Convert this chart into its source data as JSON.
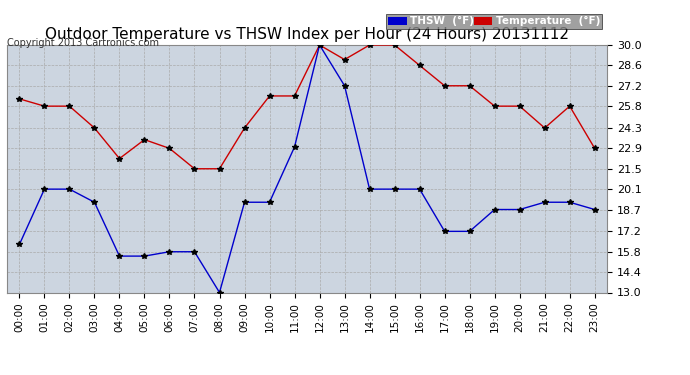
{
  "title": "Outdoor Temperature vs THSW Index per Hour (24 Hours) 20131112",
  "copyright": "Copyright 2013 Cartronics.com",
  "hours": [
    "00:00",
    "01:00",
    "02:00",
    "03:00",
    "04:00",
    "05:00",
    "06:00",
    "07:00",
    "08:00",
    "09:00",
    "10:00",
    "11:00",
    "12:00",
    "13:00",
    "14:00",
    "15:00",
    "16:00",
    "17:00",
    "18:00",
    "19:00",
    "20:00",
    "21:00",
    "22:00",
    "23:00"
  ],
  "temperature": [
    26.3,
    25.8,
    25.8,
    24.3,
    22.2,
    23.5,
    22.9,
    21.5,
    21.5,
    24.3,
    26.5,
    26.5,
    30.0,
    29.0,
    30.0,
    30.0,
    28.6,
    27.2,
    27.2,
    25.8,
    25.8,
    24.3,
    25.8,
    22.9
  ],
  "thsw": [
    16.3,
    20.1,
    20.1,
    19.2,
    15.5,
    15.5,
    15.8,
    15.8,
    13.0,
    19.2,
    19.2,
    23.0,
    30.0,
    27.2,
    20.1,
    20.1,
    20.1,
    17.2,
    17.2,
    18.7,
    18.7,
    19.2,
    19.2,
    18.7
  ],
  "temp_color": "#cc0000",
  "thsw_color": "#0000cc",
  "marker": "*",
  "marker_color": "#000000",
  "marker_size": 4,
  "ylim_min": 13.0,
  "ylim_max": 30.0,
  "yticks": [
    13.0,
    14.4,
    15.8,
    17.2,
    18.7,
    20.1,
    21.5,
    22.9,
    24.3,
    25.8,
    27.2,
    28.6,
    30.0
  ],
  "background_color": "#ffffff",
  "plot_background": "#ccd5e0",
  "grid_color": "#aaaaaa",
  "legend_thsw_bg": "#0000cc",
  "legend_temp_bg": "#cc0000",
  "legend_thsw_text": "THSW  (°F)",
  "legend_temp_text": "Temperature  (°F)",
  "title_fontsize": 11,
  "copyright_fontsize": 7,
  "tick_fontsize": 8,
  "xlabel_fontsize": 7.5
}
